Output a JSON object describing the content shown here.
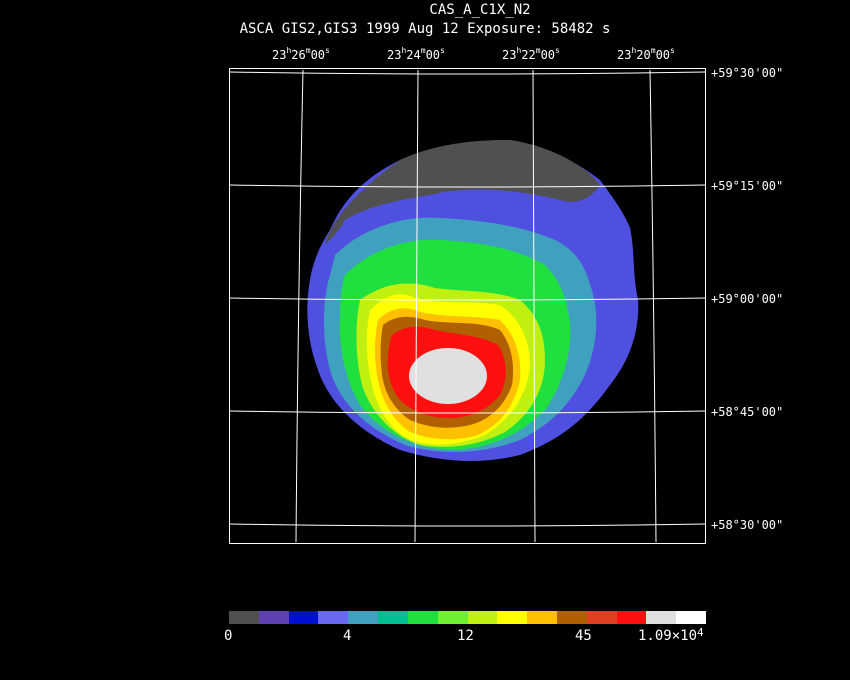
{
  "title": "CAS_A_C1X_N2",
  "subtitle": "ASCA GIS2,GIS3   1999 Aug 12   Exposure: 58482 s",
  "ra_labels": [
    {
      "h": "23",
      "m": "26",
      "s": "00"
    },
    {
      "h": "23",
      "m": "24",
      "s": "00"
    },
    {
      "h": "23",
      "m": "22",
      "s": "00"
    },
    {
      "h": "23",
      "m": "20",
      "s": "00"
    }
  ],
  "dec_labels": [
    "+59°30'00\"",
    "+59°15'00\"",
    "+59°00'00\"",
    "+58°45'00\"",
    "+58°30'00\""
  ],
  "colorbar": {
    "colors": [
      "#505050",
      "#6040b0",
      "#0010d0",
      "#6868f0",
      "#40a0c0",
      "#00c090",
      "#20e040",
      "#70f030",
      "#c0f010",
      "#ffff00",
      "#ffc000",
      "#b06000",
      "#e04020",
      "#ff1010",
      "#e0e0e0",
      "#ffffff"
    ],
    "labels": [
      "0",
      "4",
      "12",
      "45",
      "1.09×10"
    ],
    "exponent": "4"
  }
}
